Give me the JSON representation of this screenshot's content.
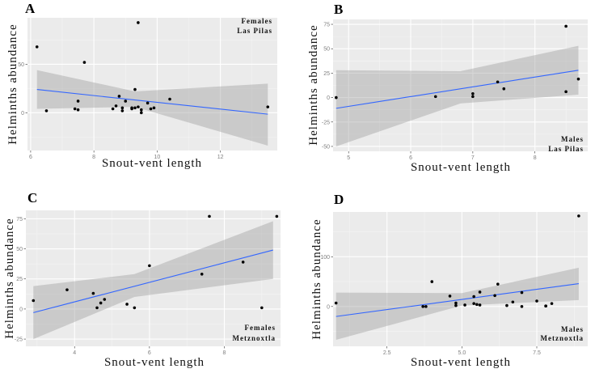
{
  "chart_data": [
    {
      "type": "scatter",
      "panel": "A",
      "title": "A",
      "annotation": [
        "Females",
        "Las Pilas"
      ],
      "annotation_position": "top-right",
      "xlabel": "Snout-vent length",
      "ylabel": "Helminths abundance",
      "xlim": [
        5.9,
        13.8
      ],
      "ylim": [
        -39,
        98
      ],
      "xticks": [
        6,
        8,
        10,
        12
      ],
      "xtick_labels": [
        "6",
        "8",
        "10",
        "12"
      ],
      "yticks": [
        0,
        50
      ],
      "ytick_labels": [
        "0",
        "50"
      ],
      "grid": true,
      "points": [
        [
          6.2,
          68
        ],
        [
          6.5,
          2
        ],
        [
          7.4,
          4
        ],
        [
          7.5,
          3
        ],
        [
          7.5,
          12
        ],
        [
          7.7,
          52
        ],
        [
          8.6,
          4
        ],
        [
          8.7,
          7
        ],
        [
          8.8,
          17
        ],
        [
          8.9,
          5
        ],
        [
          8.9,
          2
        ],
        [
          9.0,
          12
        ],
        [
          9.2,
          5
        ],
        [
          9.2,
          4
        ],
        [
          9.3,
          24
        ],
        [
          9.3,
          5
        ],
        [
          9.4,
          6
        ],
        [
          9.4,
          93
        ],
        [
          9.5,
          3
        ],
        [
          9.5,
          0
        ],
        [
          9.7,
          10
        ],
        [
          9.8,
          4
        ],
        [
          9.9,
          5
        ],
        [
          10.4,
          14
        ],
        [
          13.5,
          6
        ]
      ],
      "fit_line": {
        "x": [
          6.2,
          13.5
        ],
        "y": [
          24,
          -1.5
        ]
      },
      "confidence_band": {
        "x": [
          6.2,
          9.3,
          13.5
        ],
        "lower": [
          4,
          6,
          -34
        ],
        "upper": [
          44,
          22,
          30
        ]
      }
    },
    {
      "type": "scatter",
      "panel": "B",
      "title": "B",
      "annotation": [
        "Males",
        "Las Pilas"
      ],
      "annotation_position": "bottom-right",
      "xlabel": "Snout-vent length",
      "ylabel": "Helminths abundance",
      "xlim": [
        4.75,
        8.85
      ],
      "ylim": [
        -55,
        80
      ],
      "xticks": [
        5,
        6,
        7,
        8
      ],
      "xtick_labels": [
        "5",
        "6",
        "7",
        "8"
      ],
      "yticks": [
        -50,
        -25,
        0,
        25,
        50,
        75
      ],
      "ytick_labels": [
        "-50",
        "-25",
        "0",
        "25",
        "50",
        "75"
      ],
      "grid": true,
      "points": [
        [
          4.8,
          0
        ],
        [
          6.4,
          1
        ],
        [
          7.0,
          4
        ],
        [
          7.0,
          1
        ],
        [
          7.4,
          16
        ],
        [
          7.5,
          9
        ],
        [
          8.5,
          73
        ],
        [
          8.5,
          6
        ],
        [
          8.7,
          19
        ]
      ],
      "fit_line": {
        "x": [
          4.8,
          8.7
        ],
        "y": [
          -11,
          28
        ]
      },
      "confidence_band": {
        "x": [
          4.8,
          6.8,
          8.7
        ],
        "lower": [
          -50,
          -6,
          3
        ],
        "upper": [
          28,
          27,
          53
        ]
      }
    },
    {
      "type": "scatter",
      "panel": "C",
      "title": "C",
      "annotation": [
        "Females",
        "Metznoxtla"
      ],
      "annotation_position": "bottom-right",
      "xlabel": "Snout-vent length",
      "ylabel": "Helminths abundance",
      "xlim": [
        2.7,
        9.5
      ],
      "ylim": [
        -31,
        82
      ],
      "xticks": [
        4,
        6,
        8
      ],
      "xtick_labels": [
        "4",
        "6",
        "8"
      ],
      "yticks": [
        -25,
        0,
        25,
        50,
        75
      ],
      "ytick_labels": [
        "-25",
        "0",
        "25",
        "50",
        "75"
      ],
      "grid": true,
      "points": [
        [
          2.9,
          7
        ],
        [
          3.8,
          16
        ],
        [
          4.5,
          13
        ],
        [
          4.6,
          1
        ],
        [
          4.7,
          5
        ],
        [
          4.8,
          8
        ],
        [
          5.4,
          4
        ],
        [
          5.6,
          1
        ],
        [
          6.0,
          36
        ],
        [
          7.4,
          29
        ],
        [
          7.6,
          77
        ],
        [
          8.5,
          39
        ],
        [
          9.0,
          1
        ],
        [
          9.4,
          77
        ]
      ],
      "fit_line": {
        "x": [
          2.9,
          9.3
        ],
        "y": [
          -3,
          49
        ]
      },
      "confidence_band": {
        "x": [
          2.9,
          5.6,
          9.3
        ],
        "lower": [
          -25,
          10,
          25
        ],
        "upper": [
          19,
          29,
          73
        ]
      }
    },
    {
      "type": "scatter",
      "panel": "D",
      "title": "D",
      "annotation": [
        "Males",
        "Metznoxtla"
      ],
      "annotation_position": "bottom-right",
      "xlabel": "Snout-vent length",
      "ylabel": "Helminths abundance",
      "xlim": [
        0.7,
        9.2
      ],
      "ylim": [
        -80,
        190
      ],
      "xticks": [
        2.5,
        5.0,
        7.5
      ],
      "xtick_labels": [
        "2.5",
        "5.0",
        "7.5"
      ],
      "yticks": [
        0,
        100
      ],
      "ytick_labels": [
        "0",
        "100"
      ],
      "grid": true,
      "points": [
        [
          0.8,
          7
        ],
        [
          3.7,
          0
        ],
        [
          3.8,
          0
        ],
        [
          4.0,
          50
        ],
        [
          4.6,
          21
        ],
        [
          4.8,
          7
        ],
        [
          4.8,
          2
        ],
        [
          5.1,
          3
        ],
        [
          5.4,
          20
        ],
        [
          5.4,
          6
        ],
        [
          5.5,
          4
        ],
        [
          5.6,
          29
        ],
        [
          5.6,
          3
        ],
        [
          6.1,
          22
        ],
        [
          6.2,
          45
        ],
        [
          6.5,
          2
        ],
        [
          6.7,
          9
        ],
        [
          7.0,
          28
        ],
        [
          7.0,
          0
        ],
        [
          7.5,
          11
        ],
        [
          7.8,
          1
        ],
        [
          7.8,
          1
        ],
        [
          8.0,
          6
        ],
        [
          8.9,
          182
        ]
      ],
      "fit_line": {
        "x": [
          0.8,
          8.9
        ],
        "y": [
          -20,
          46
        ]
      },
      "confidence_band": {
        "x": [
          0.8,
          5.0,
          8.9
        ],
        "lower": [
          -67,
          2,
          13
        ],
        "upper": [
          28,
          27,
          78
        ]
      }
    }
  ]
}
